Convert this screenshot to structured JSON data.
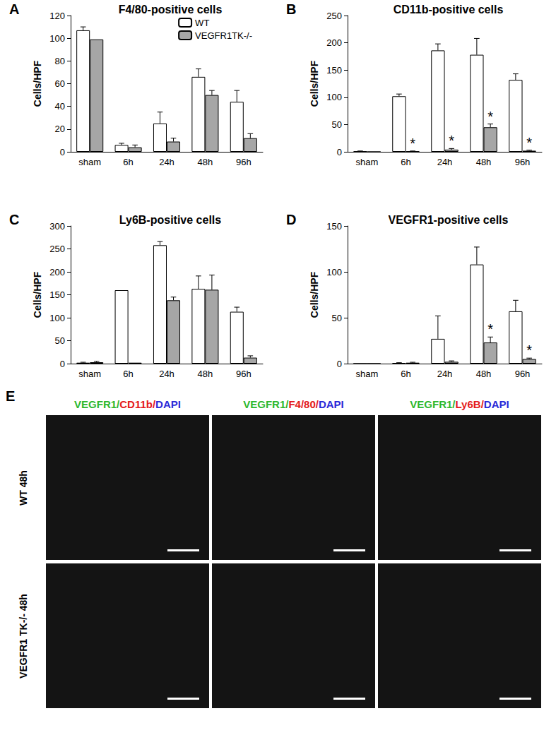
{
  "chart_data": [
    {
      "type": "bar",
      "panel": "A",
      "title": "F4/80-positive cells",
      "y_label": "Cells/HPF",
      "categories": [
        "sham",
        "6h",
        "24h",
        "48h",
        "96h"
      ],
      "ylim": [
        0,
        120
      ],
      "yticks": [
        0,
        20,
        40,
        60,
        80,
        100,
        120
      ],
      "grid": false,
      "legend": "top-right",
      "series": [
        {
          "name": "WT",
          "color": "#ffffff",
          "values": [
            107,
            6,
            25,
            66,
            44
          ],
          "errors": [
            3,
            1.5,
            10,
            7,
            10
          ]
        },
        {
          "name": "VEGFR1TK-/-",
          "color": "#a6a6a6",
          "values": [
            99,
            4,
            9,
            50,
            12
          ],
          "errors": [
            null,
            2,
            3,
            4,
            4
          ]
        }
      ]
    },
    {
      "type": "bar",
      "panel": "B",
      "title": "CD11b-positive cells",
      "y_label": "Cells/HPF",
      "categories": [
        "sham",
        "6h",
        "24h",
        "48h",
        "96h"
      ],
      "ylim": [
        0,
        250
      ],
      "yticks": [
        0,
        50,
        100,
        150,
        200,
        250
      ],
      "grid": false,
      "series": [
        {
          "color": "#ffffff",
          "values": [
            1,
            102,
            186,
            178,
            132
          ],
          "errors": [
            0.5,
            4,
            12,
            30,
            11
          ]
        },
        {
          "color": "#a6a6a6",
          "values": [
            0,
            1,
            4,
            45,
            2
          ],
          "errors": [
            null,
            0.5,
            2,
            6,
            1
          ],
          "annotations": [
            null,
            "*",
            "*",
            "*",
            "*"
          ]
        }
      ]
    },
    {
      "type": "bar",
      "panel": "C",
      "title": "Ly6B-positive cells",
      "y_label": "Cells/HPF",
      "categories": [
        "sham",
        "6h",
        "24h",
        "48h",
        "96h"
      ],
      "ylim": [
        0,
        300
      ],
      "yticks": [
        0,
        50,
        100,
        150,
        200,
        250,
        300
      ],
      "grid": false,
      "series": [
        {
          "color": "#ffffff",
          "values": [
            2,
            160,
            258,
            163,
            113
          ],
          "errors": [
            1,
            null,
            8,
            28,
            10
          ]
        },
        {
          "color": "#a6a6a6",
          "values": [
            3,
            2,
            138,
            161,
            13
          ],
          "errors": [
            2,
            null,
            7,
            32,
            4
          ]
        }
      ]
    },
    {
      "type": "bar",
      "panel": "D",
      "title": "VEGFR1-positive cells",
      "y_label": "Cells/HPF",
      "categories": [
        "sham",
        "6h",
        "24h",
        "48h",
        "96h"
      ],
      "ylim": [
        0,
        150
      ],
      "yticks": [
        0,
        50,
        100,
        150
      ],
      "grid": false,
      "series": [
        {
          "color": "#ffffff",
          "values": [
            0,
            0.5,
            27,
            108,
            57
          ],
          "errors": [
            null,
            0.5,
            25,
            19,
            12
          ]
        },
        {
          "color": "#a6a6a6",
          "values": [
            0,
            1,
            2,
            23,
            5
          ],
          "errors": [
            null,
            0.5,
            1,
            6,
            1
          ],
          "annotations": [
            null,
            null,
            null,
            "*",
            "*"
          ]
        }
      ]
    }
  ],
  "image_panel": {
    "panel": "E",
    "columns": [
      [
        {
          "text": "VEGFR1/",
          "color": "#2db82d"
        },
        {
          "text": "CD11b/",
          "color": "#e41a1c"
        },
        {
          "text": "DAPI",
          "color": "#2a2ad8"
        }
      ],
      [
        {
          "text": "VEGFR1/",
          "color": "#2db82d"
        },
        {
          "text": "F4/80/",
          "color": "#e41a1c"
        },
        {
          "text": "DAPI",
          "color": "#2a2ad8"
        }
      ],
      [
        {
          "text": "VEGFR1/",
          "color": "#2db82d"
        },
        {
          "text": "Ly6B/",
          "color": "#e41a1c"
        },
        {
          "text": "DAPI",
          "color": "#2a2ad8"
        }
      ]
    ],
    "rows": [
      "WT 48h",
      "VEGFR1 TK-/- 48h"
    ]
  }
}
